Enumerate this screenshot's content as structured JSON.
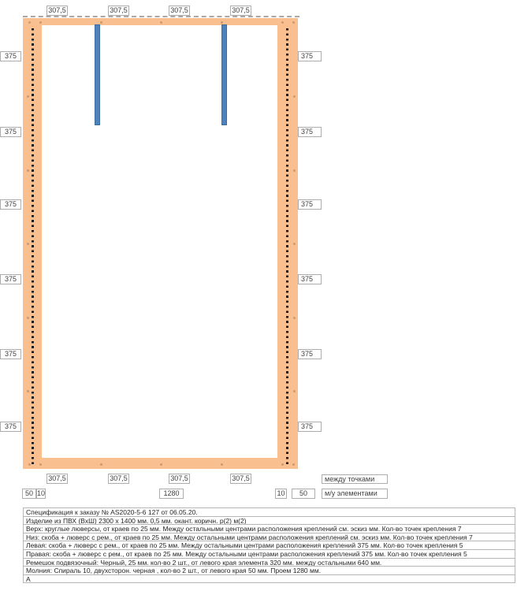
{
  "colors": {
    "frame_fill": "#F9BF8F",
    "strap_fill": "#4F81BD",
    "strap_border": "#3C6E9F",
    "fastener_dot": "#161616",
    "dash_line": "#A9A9A9",
    "box_border": "#ADADAD",
    "label_text": "#3F3F3F"
  },
  "diagram": {
    "top_spacing_labels": [
      "307,5",
      "307,5",
      "307,5",
      "307,5"
    ],
    "bottom_spacing_labels": [
      "307,5",
      "307,5",
      "307,5",
      "307,5"
    ],
    "left_spacing_labels": [
      "375",
      "375",
      "375",
      "375",
      "375",
      "375"
    ],
    "right_spacing_labels": [
      "375",
      "375",
      "375",
      "375",
      "375",
      "375"
    ],
    "bottom_dim_boxes": [
      "50",
      "10",
      "1280",
      "10",
      "50"
    ],
    "legend": {
      "row1": "между точками",
      "row2": "м/у элементами"
    }
  },
  "spec_table": {
    "rows": [
      "Спецификация к заказу № AS2020-5-6  127 от 06.05.20.",
      "Изделие из ПВХ (ВхШ) 2300 x 1400 мм. 0,5 мм. окант.  коричн. р(2) м(2)",
      "Верх: круглые люверсы, от краев по  25 мм. Между остальными центрами расположения креплений см. эскиз мм. Кол-во точек крепления 7",
      "Низ: скоба + люверс с рем., от краев по  25 мм. Между остальными центрами расположения креплений см. эскиз мм. Кол-во точек крепления 7",
      "Левая: скоба + люверс с рем., от краев по 25 мм. Между остальными центрами расположения креплений 375 мм. Кол-во точек крепления 5",
      "Правая: скоба + люверс с рем., от краев по  25 мм. Между остальными центрами расположения креплений 375 мм. Кол-во точек крепления 5",
      "Ремешок подвязочный: Черный, 25 мм. кол-во 2 шт., от левого края элемента 320 мм. между остальными 640 мм.",
      "Молния: Спираль 10, двухсторон. черная , кол-во 2 шт., от левого края  50 мм. Проем 1280 мм.",
      "А"
    ]
  }
}
